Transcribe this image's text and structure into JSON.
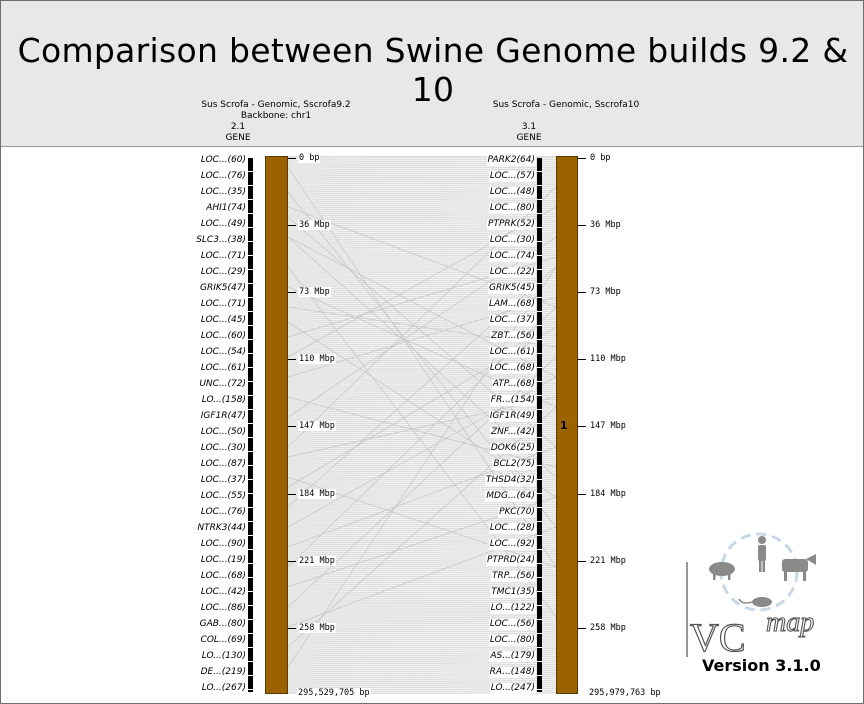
{
  "title": "Comparison between Swine Genome builds 9.2 & 10",
  "left_header": {
    "name": "Sus Scrofa - Genomic, Sscrofa9.2",
    "backbone": "Backbone: chr1",
    "version": "2.1",
    "track": "GENE"
  },
  "right_header": {
    "name": "Sus Scrofa - Genomic, Sscrofa10",
    "version": "3.1",
    "track": "GENE"
  },
  "left_chrom": {
    "ticks": [
      "0 bp",
      "36 Mbp",
      "73 Mbp",
      "110 Mbp",
      "147 Mbp",
      "184 Mbp",
      "221 Mbp",
      "258 Mbp"
    ],
    "end_label": "295,529,705 bp"
  },
  "right_chrom": {
    "ticks": [
      "0 bp",
      "36 Mbp",
      "73 Mbp",
      "110 Mbp",
      "147 Mbp",
      "184 Mbp",
      "221 Mbp",
      "258 Mbp"
    ],
    "end_label": "295,979,763 bp",
    "label": "1"
  },
  "left_genes": [
    "LOC...(60)",
    "LOC...(76)",
    "LOC...(35)",
    "AHI1(74)",
    "LOC...(49)",
    "SLC3...(38)",
    "LOC...(71)",
    "LOC...(29)",
    "GRIK5(47)",
    "LOC...(71)",
    "LOC...(45)",
    "LOC...(60)",
    "LOC...(54)",
    "LOC...(61)",
    "UNC...(72)",
    "LO...(158)",
    "IGF1R(47)",
    "LOC...(50)",
    "LOC...(30)",
    "LOC...(87)",
    "LOC...(37)",
    "LOC...(55)",
    "LOC...(76)",
    "NTRK3(44)",
    "LOC...(90)",
    "LOC...(19)",
    "LOC...(68)",
    "LOC...(42)",
    "LOC...(86)",
    "GAB...(80)",
    "COL...(69)",
    "LO...(130)",
    "DE...(219)",
    "LO...(267)"
  ],
  "right_genes": [
    "PARK2(64)",
    "LOC...(57)",
    "LOC...(48)",
    "LOC...(80)",
    "PTPRK(52)",
    "LOC...(30)",
    "LOC...(74)",
    "LOC...(22)",
    "GRIK5(45)",
    "LAM...(68)",
    "LOC...(37)",
    "ZBT...(56)",
    "LOC...(61)",
    "LOC...(68)",
    "ATP...(68)",
    "FR...(154)",
    "IGF1R(49)",
    "ZNF...(42)",
    "DOK6(25)",
    "BCL2(75)",
    "THSD4(32)",
    "MDG...(64)",
    "PKC(70)",
    "LOC...(28)",
    "LOC...(92)",
    "PTPRD(24)",
    "TRP...(56)",
    "TMC1(35)",
    "LO...(122)",
    "LOC...(56)",
    "LOC...(80)",
    "AS...(179)",
    "RA...(148)",
    "LO...(247)"
  ],
  "logo": {
    "text_vc": "VC",
    "text_map": "map",
    "version": "Version 3.1.0"
  },
  "colors": {
    "chromosome": "#9b6200",
    "synteny": "#c8c8c8",
    "header_bg": "#e8e8e8"
  }
}
